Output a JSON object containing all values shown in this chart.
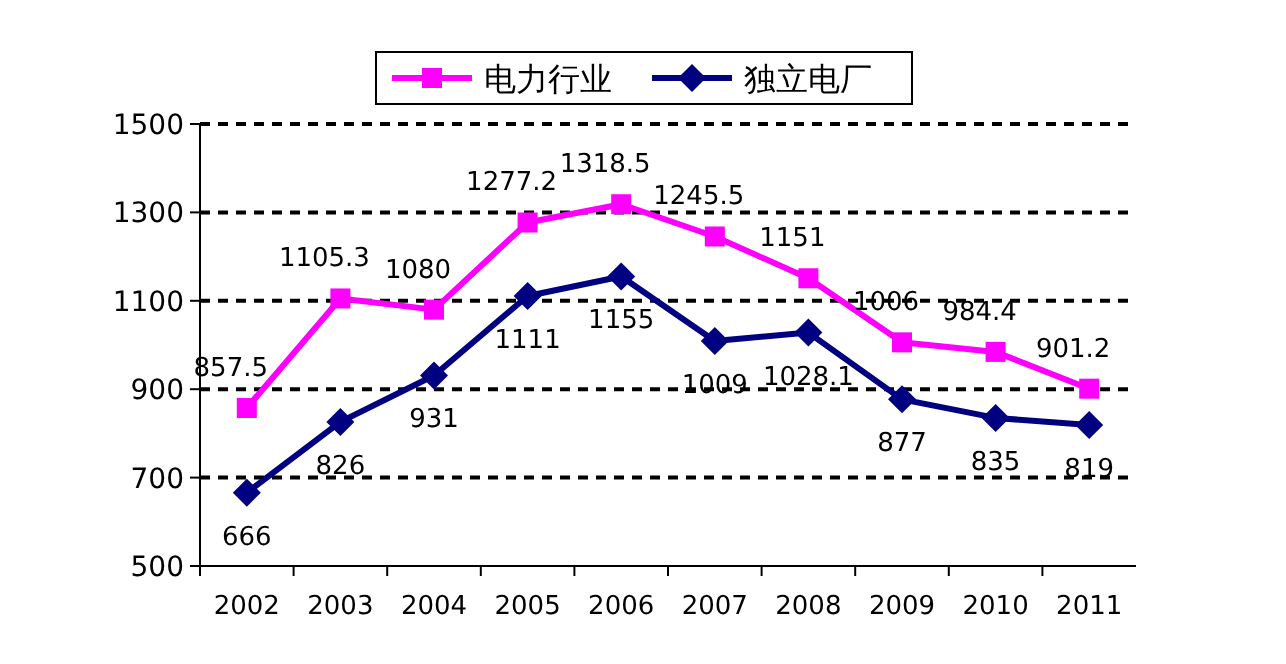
{
  "chart_data": {
    "type": "line",
    "categories": [
      "2002",
      "2003",
      "2004",
      "2005",
      "2006",
      "2007",
      "2008",
      "2009",
      "2010",
      "2011"
    ],
    "series": [
      {
        "name": "电力行业",
        "color": "#ff00ff",
        "marker": "square",
        "values": [
          857.5,
          1105.3,
          1080,
          1277.2,
          1318.5,
          1245.5,
          1151,
          1006,
          984.4,
          901.2
        ]
      },
      {
        "name": "独立电厂",
        "color": "#000080",
        "marker": "diamond",
        "values": [
          666,
          826,
          931,
          1111,
          1155,
          1009,
          1028.1,
          877,
          835,
          819
        ]
      }
    ],
    "ylim": [
      500,
      1500
    ],
    "yticks": [
      500,
      700,
      900,
      1100,
      1300,
      1500
    ],
    "grid": "y",
    "legend": "top",
    "data_labels": true,
    "line_style": "solid"
  }
}
